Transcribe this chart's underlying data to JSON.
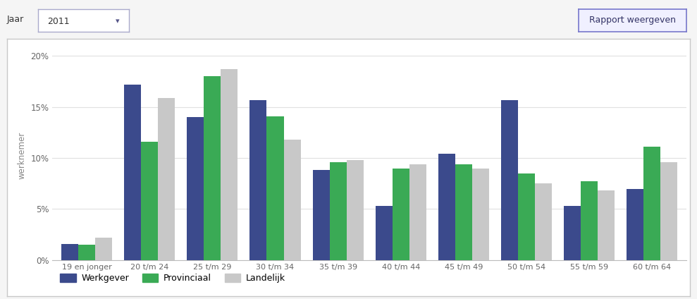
{
  "categories": [
    "19 en jonger",
    "20 t/m 24",
    "25 t/m 29",
    "30 t/m 34",
    "35 t/m 39",
    "40 t/m 44",
    "45 t/m 49",
    "50 t/m 54",
    "55 t/m 59",
    "60 t/m 64"
  ],
  "werkgever": [
    0.016,
    0.172,
    0.14,
    0.157,
    0.088,
    0.053,
    0.104,
    0.157,
    0.053,
    0.07
  ],
  "provinciaal": [
    0.015,
    0.116,
    0.18,
    0.141,
    0.096,
    0.09,
    0.094,
    0.085,
    0.077,
    0.111
  ],
  "landelijk": [
    0.022,
    0.159,
    0.187,
    0.118,
    0.098,
    0.094,
    0.09,
    0.075,
    0.068,
    0.096
  ],
  "color_werkgever": "#3b4a8c",
  "color_provinciaal": "#3aaa55",
  "color_landelijk": "#c8c8c8",
  "ylabel": "werknemer",
  "ylim": [
    0,
    0.205
  ],
  "yticks": [
    0.0,
    0.05,
    0.1,
    0.15,
    0.2
  ],
  "ytick_labels": [
    "0%",
    "5%",
    "10%",
    "15%",
    "20%"
  ],
  "legend_labels": [
    "Werkgever",
    "Provinciaal",
    "Landelijk"
  ],
  "bar_width": 0.27,
  "background_color": "#f5f5f5",
  "chart_bg_color": "#ffffff",
  "header_text_jaar": "Jaar",
  "header_text_year": "2011",
  "header_button": "Rapport weergeven",
  "border_color": "#c8c8c8",
  "header_bg": "#f0f0f0"
}
